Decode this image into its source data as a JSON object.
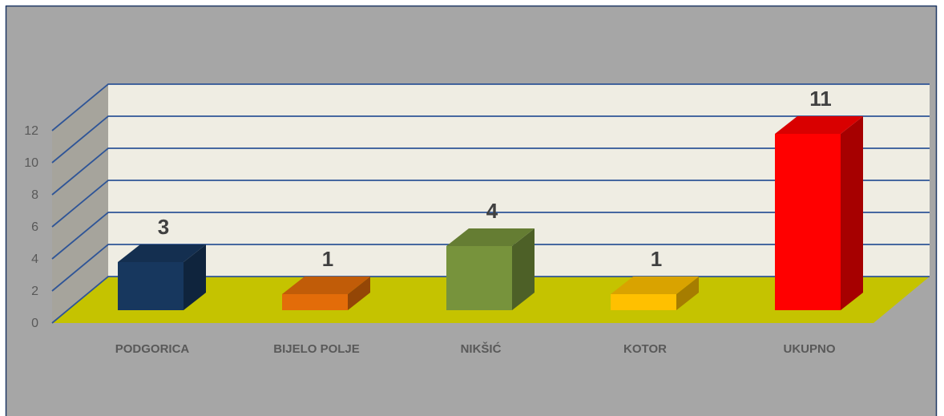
{
  "chart_data": {
    "type": "bar",
    "categories": [
      "PODGORICA",
      "BIJELO POLJE",
      "NIKŠIĆ",
      "KOTOR",
      "UKUPNO"
    ],
    "values": [
      3,
      1,
      4,
      1,
      11
    ],
    "data_labels": [
      "3",
      "1",
      "4",
      "1",
      "11"
    ],
    "y_ticks": [
      "0",
      "2",
      "4",
      "6",
      "8",
      "10",
      "12"
    ],
    "ylim": [
      0,
      12
    ],
    "grid": true,
    "style": "3d-column",
    "colors": {
      "background": "#a6a6a6",
      "back_wall": "#efede3",
      "side_wall": "#a6a49c",
      "floor": "#c5c300",
      "gridline": "#2f5597",
      "bars": [
        "#17375e",
        "#e36c09",
        "#77933c",
        "#ffc000",
        "#ff0000"
      ]
    }
  }
}
